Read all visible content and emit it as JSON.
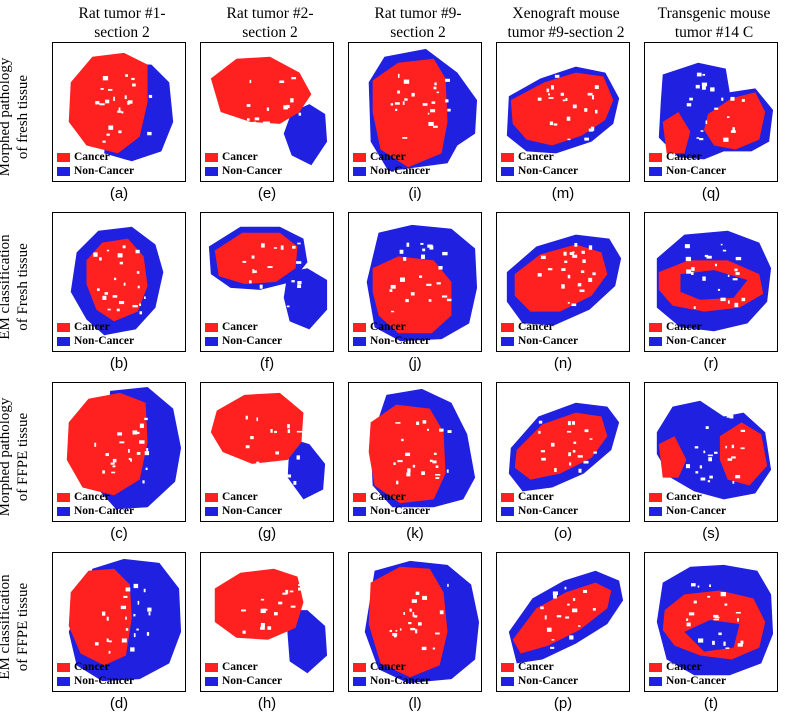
{
  "columns": [
    "Rat tumor #1-\nsection 2",
    "Rat tumor #2-\nsection 2",
    "Rat tumor #9-\nsection 2",
    "Xenograft mouse\ntumor #9-section 2",
    "Transgenic mouse\ntumor #14 C"
  ],
  "rows": [
    "Morphed pathology\nof fresh tissue",
    "EM classification\nof Fresh tissue",
    "Morphed pathology\nof FFPE tissue",
    "EM classification\nof FFPE tissue"
  ],
  "legend": {
    "cancer": "Cancer",
    "noncancer": "Non-Cancer",
    "cancer_color": "#ff2020",
    "noncancer_color": "#2020e0"
  },
  "captions": [
    [
      "(a)",
      "(e)",
      "(i)",
      "(m)",
      "(q)"
    ],
    [
      "(b)",
      "(f)",
      "(j)",
      "(n)",
      "(r)"
    ],
    [
      "(c)",
      "(g)",
      "(k)",
      "(o)",
      "(s)"
    ],
    [
      "(d)",
      "(h)",
      "(l)",
      "(p)",
      "(t)"
    ]
  ]
}
